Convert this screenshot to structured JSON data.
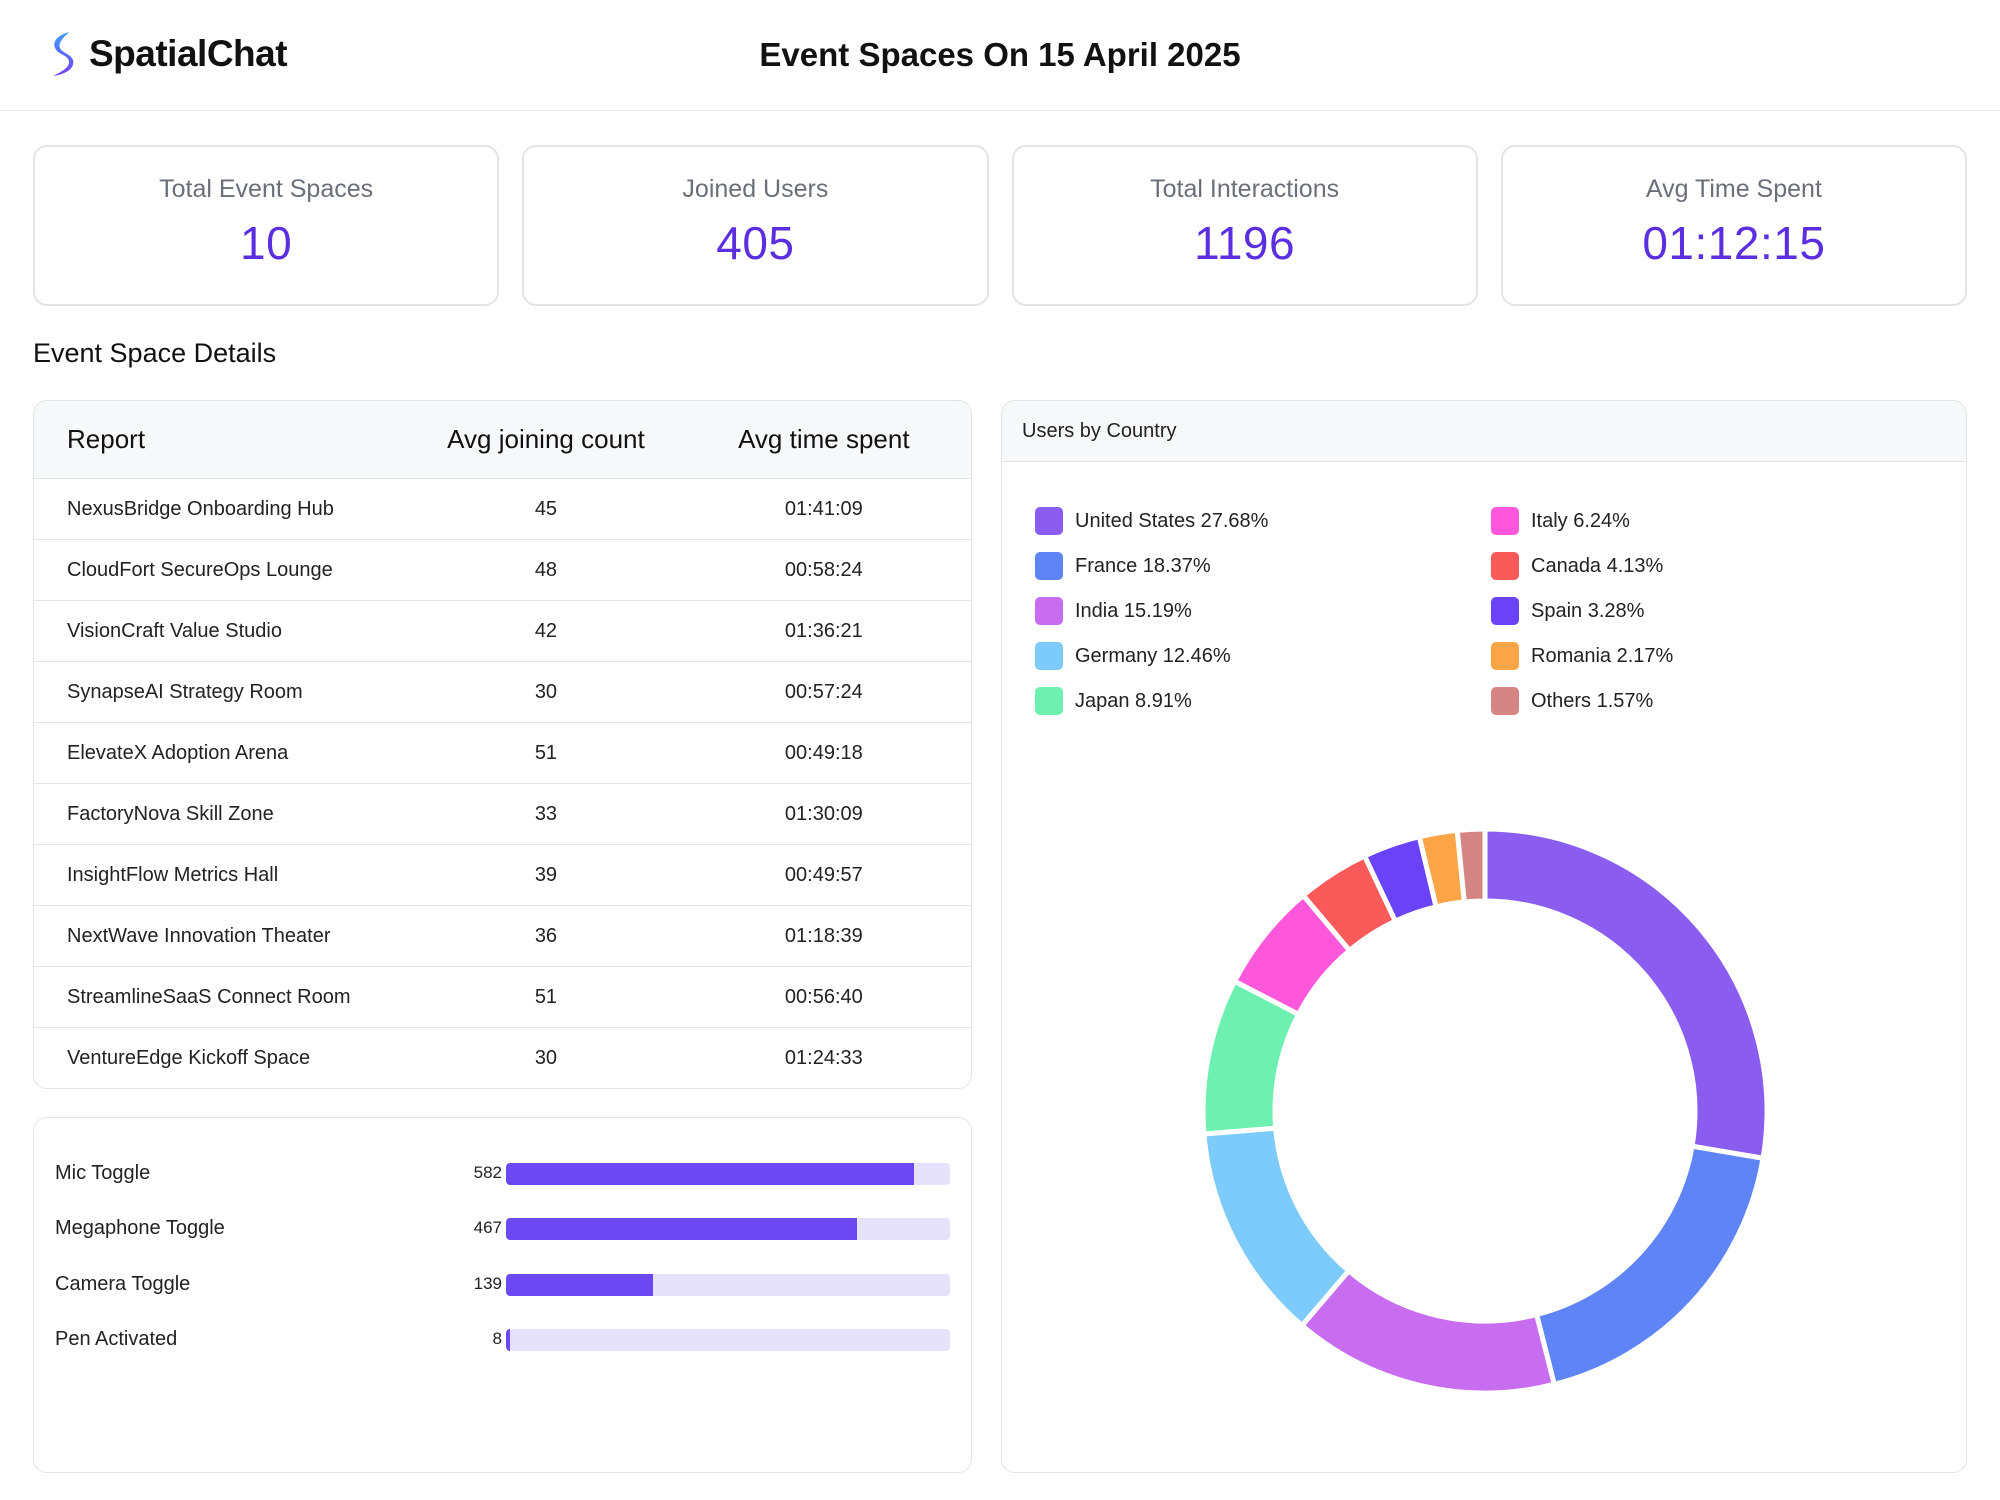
{
  "header": {
    "logo_text": "SpatialChat",
    "title": "Event Spaces On 15 April 2025"
  },
  "stats": [
    {
      "label": "Total Event Spaces",
      "value": "10"
    },
    {
      "label": "Joined Users",
      "value": "405"
    },
    {
      "label": "Total Interactions",
      "value": "1196"
    },
    {
      "label": "Avg Time Spent",
      "value": "01:12:15"
    }
  ],
  "section_title": "Event Space Details",
  "table": {
    "columns": [
      "Report",
      "Avg joining count",
      "Avg time spent"
    ],
    "rows": [
      [
        "NexusBridge Onboarding Hub",
        "45",
        "01:41:09"
      ],
      [
        "CloudFort SecureOps Lounge",
        "48",
        "00:58:24"
      ],
      [
        "VisionCraft Value Studio",
        "42",
        "01:36:21"
      ],
      [
        "SynapseAI Strategy Room",
        "30",
        "00:57:24"
      ],
      [
        "ElevateX Adoption Arena",
        "51",
        "00:49:18"
      ],
      [
        "FactoryNova Skill Zone",
        "33",
        "01:30:09"
      ],
      [
        "InsightFlow Metrics Hall",
        "39",
        "00:49:57"
      ],
      [
        "NextWave Innovation Theater",
        "36",
        "01:18:39"
      ],
      [
        "StreamlineSaaS Connect Room",
        "51",
        "00:56:40"
      ],
      [
        "VentureEdge Kickoff Space",
        "30",
        "01:24:33"
      ]
    ]
  },
  "interactions": [
    {
      "label": "Mic Toggle",
      "count": "582",
      "fraction": 0.92
    },
    {
      "label": "Megaphone Toggle",
      "count": "467",
      "fraction": 0.79
    },
    {
      "label": "Camera Toggle",
      "count": "139",
      "fraction": 0.33
    },
    {
      "label": "Pen Activated",
      "count": "8",
      "fraction": 0.01
    }
  ],
  "chart_title": "Users by Country",
  "chart_data": {
    "type": "pie",
    "title": "Users by Country",
    "categories": [
      "United States",
      "France",
      "India",
      "Germany",
      "Japan",
      "Italy",
      "Canada",
      "Spain",
      "Romania",
      "Others"
    ],
    "values": [
      27.68,
      18.37,
      15.19,
      12.46,
      8.91,
      6.24,
      4.13,
      3.28,
      2.17,
      1.57
    ],
    "legend_labels": [
      "United States 27.68%",
      "France 18.37%",
      "India 15.19%",
      "Germany 12.46%",
      "Japan 8.91%",
      "Italy 6.24%",
      "Canada 4.13%",
      "Spain 3.28%",
      "Romania 2.17%",
      "Others 1.57%"
    ],
    "colors": [
      "#8b5cf0",
      "#5f84f5",
      "#c86cf0",
      "#7ccbfa",
      "#6ef1b0",
      "#ff57dc",
      "#fb5a5a",
      "#6a42f8",
      "#fba547",
      "#d68585"
    ],
    "legend_position": "top"
  }
}
